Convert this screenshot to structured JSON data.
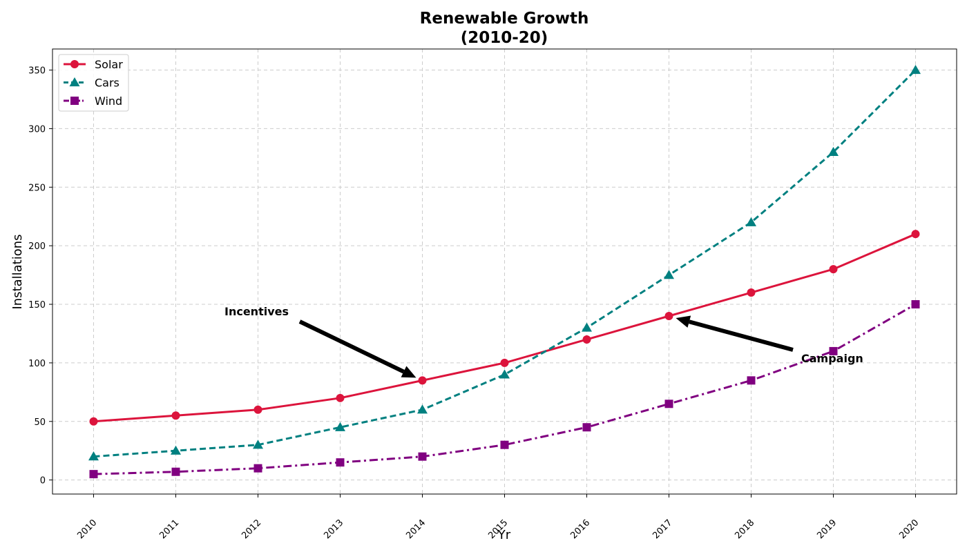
{
  "chart_data": {
    "type": "line",
    "title_lines": [
      "Renewable Growth",
      "(2010-20)"
    ],
    "xlabel": "Yr",
    "ylabel": "Installations",
    "x": [
      "2010",
      "2011",
      "2012",
      "2013",
      "2014",
      "2015",
      "2016",
      "2017",
      "2018",
      "2019",
      "2020"
    ],
    "ylim": [
      -12,
      368
    ],
    "yticks": [
      0,
      50,
      100,
      150,
      200,
      250,
      300,
      350
    ],
    "grid": true,
    "legend_position": "top-left",
    "series": [
      {
        "name": "Solar",
        "values": [
          50,
          55,
          60,
          70,
          85,
          100,
          120,
          140,
          160,
          180,
          210
        ],
        "color": "#dc143c",
        "marker": "circle",
        "line_style": "solid"
      },
      {
        "name": "Cars",
        "values": [
          20,
          25,
          30,
          45,
          60,
          90,
          130,
          175,
          220,
          280,
          350
        ],
        "color": "#008080",
        "marker": "triangle",
        "line_style": "dashed"
      },
      {
        "name": "Wind",
        "values": [
          5,
          7,
          10,
          15,
          20,
          30,
          45,
          65,
          85,
          110,
          150
        ],
        "color": "#800080",
        "marker": "square",
        "line_style": "dashdot"
      }
    ],
    "annotations": [
      {
        "text": "Incentives",
        "target_x": "2014",
        "target_y": 85
      },
      {
        "text": "Campaign",
        "target_x": "2017",
        "target_y": 140
      }
    ]
  }
}
